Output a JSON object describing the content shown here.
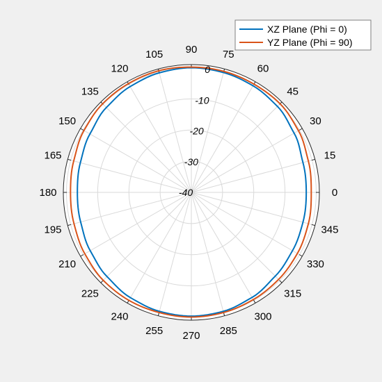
{
  "chart_data": {
    "type": "line",
    "projection": "polar",
    "theta_unit": "degrees",
    "theta_ticks": [
      "0",
      "15",
      "30",
      "45",
      "60",
      "75",
      "90",
      "105",
      "120",
      "135",
      "150",
      "165",
      "180",
      "195",
      "210",
      "225",
      "240",
      "255",
      "270",
      "285",
      "300",
      "315",
      "330",
      "345"
    ],
    "r_ticks": [
      "-40",
      "-30",
      "-20",
      "-10",
      "0"
    ],
    "r_range": [
      -40,
      1
    ],
    "grid": true,
    "legend_position": "top-right",
    "series": [
      {
        "name": "XZ Plane (Phi = 0)",
        "color": "#0072bd",
        "theta": [
          0,
          15,
          30,
          45,
          60,
          75,
          90,
          105,
          120,
          135,
          150,
          165,
          180,
          195,
          210,
          225,
          240,
          255,
          270,
          285,
          300,
          315,
          330,
          345,
          360
        ],
        "r": [
          -3.2,
          -3.0,
          -2.0,
          -1.0,
          -0.5,
          -0.2,
          0,
          -0.3,
          -0.8,
          -1.5,
          -2.5,
          -3.2,
          -3.5,
          -3.3,
          -2.6,
          -1.8,
          -1.0,
          -0.5,
          -0.3,
          -0.5,
          -1.1,
          -2.0,
          -2.6,
          -3.0,
          -3.2
        ]
      },
      {
        "name": "YZ Plane (Phi = 90)",
        "color": "#d95319",
        "theta": [
          0,
          15,
          30,
          45,
          60,
          75,
          90,
          105,
          120,
          135,
          150,
          165,
          180,
          195,
          210,
          225,
          240,
          255,
          270,
          285,
          300,
          315,
          330,
          345,
          360
        ],
        "r": [
          -1.6,
          -1.2,
          -0.4,
          0.2,
          0.1,
          0.2,
          0.2,
          0.4,
          0.3,
          0.2,
          -0.3,
          -1.0,
          -1.3,
          -1.1,
          -0.6,
          -0.1,
          0,
          -0.1,
          0,
          -0.1,
          -0.3,
          -0.5,
          -0.8,
          -1.2,
          -1.6
        ]
      }
    ]
  }
}
